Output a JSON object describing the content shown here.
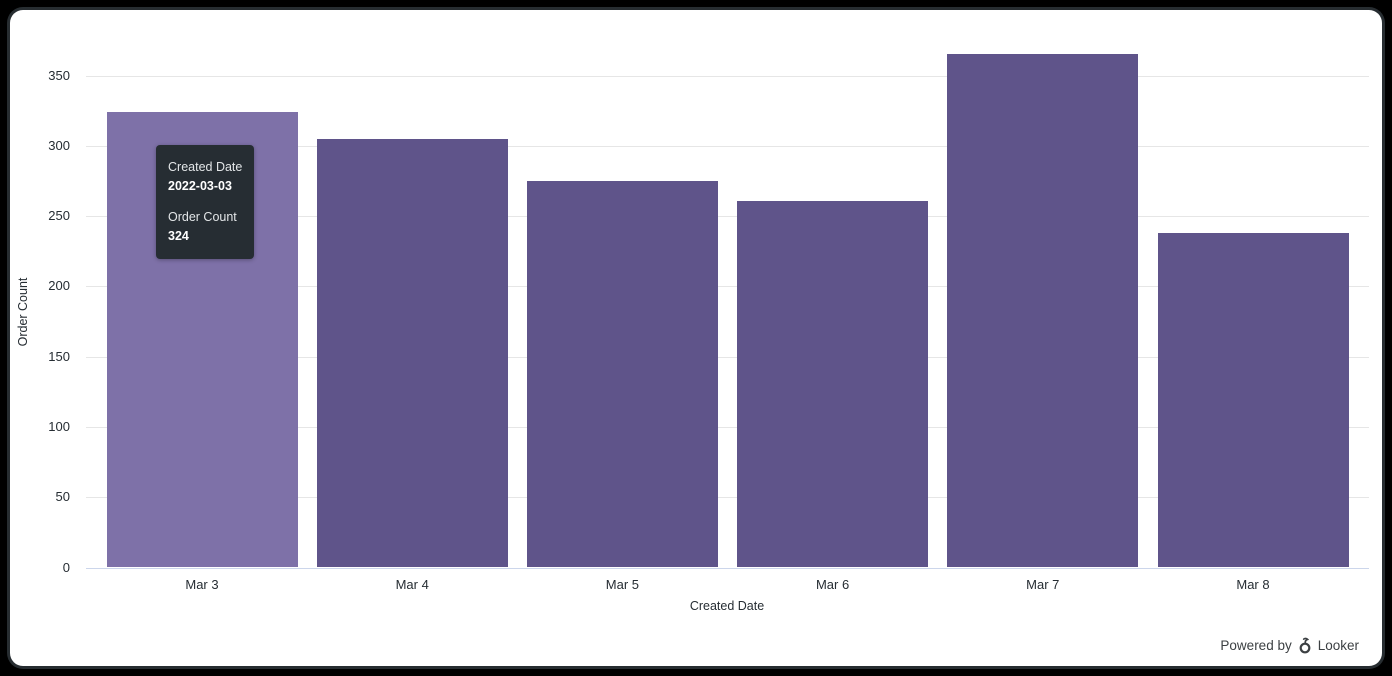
{
  "window": {
    "powered_by_label": "Powered by",
    "brand_label": "Looker"
  },
  "tooltip": {
    "field1_label": "Created Date",
    "field1_value": "2022-03-03",
    "field2_label": "Order Count",
    "field2_value": "324"
  },
  "chart_data": {
    "type": "bar",
    "title": "",
    "categories": [
      "Mar 3",
      "Mar 4",
      "Mar 5",
      "Mar 6",
      "Mar 7",
      "Mar 8"
    ],
    "values": [
      324,
      305,
      275,
      261,
      365,
      238
    ],
    "xlabel": "Created Date",
    "ylabel": "Order Count",
    "yticks": [
      0,
      50,
      100,
      150,
      200,
      250,
      300,
      350
    ],
    "ylim": [
      0,
      370
    ],
    "grid": true,
    "legend": "none",
    "hovered_index": 0,
    "colors": {
      "bar": "#5f548a",
      "bar_hover": "#7e71a8",
      "gridline": "#e6e6e6",
      "axis_line": "#ccd6eb",
      "tick_text": "#262d33",
      "tooltip_bg": "#262d33"
    }
  }
}
